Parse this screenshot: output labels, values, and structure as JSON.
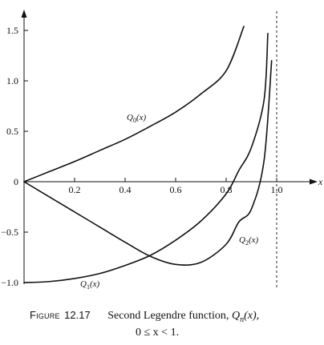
{
  "chart_data": {
    "type": "line",
    "title": "",
    "xlabel": "x",
    "ylabel": "",
    "xlim": [
      0,
      1.08
    ],
    "ylim": [
      -1.0,
      1.65
    ],
    "x_tick_labels": [
      "0.2",
      "0.4",
      "0.6",
      "0.8",
      "1.0"
    ],
    "x_tick_values": [
      0.2,
      0.4,
      0.6,
      0.8,
      1.0
    ],
    "y_tick_labels": [
      "1.5",
      "1.0",
      "0.5",
      "0",
      "−0.5",
      "−1.0"
    ],
    "y_tick_values": [
      1.5,
      1.0,
      0.5,
      0,
      -0.5,
      -1.0
    ],
    "asymptote_x": 1.0,
    "grid": false,
    "legend": "none",
    "series": [
      {
        "name": "Q0(x)",
        "label_main": "Q",
        "label_sub": "0",
        "label_arg": "(x)",
        "x": [
          0,
          0.1,
          0.2,
          0.3,
          0.4,
          0.5,
          0.6,
          0.7,
          0.8,
          0.87
        ],
        "values": [
          0,
          0.1,
          0.2,
          0.31,
          0.42,
          0.55,
          0.69,
          0.87,
          1.1,
          1.54
        ]
      },
      {
        "name": "Q1(x)",
        "label_main": "Q",
        "label_sub": "1",
        "label_arg": "(x)",
        "x": [
          0,
          0.1,
          0.2,
          0.3,
          0.4,
          0.5,
          0.6,
          0.7,
          0.8,
          0.85,
          0.9,
          0.95,
          0.965
        ],
        "values": [
          -1.0,
          -0.99,
          -0.96,
          -0.91,
          -0.83,
          -0.73,
          -0.58,
          -0.39,
          -0.12,
          0.11,
          0.34,
          0.81,
          1.47
        ]
      },
      {
        "name": "Q2(x)",
        "label_main": "Q",
        "label_sub": "2",
        "label_arg": "(x)",
        "x": [
          0,
          0.1,
          0.2,
          0.3,
          0.4,
          0.5,
          0.6,
          0.7,
          0.8,
          0.85,
          0.9,
          0.95,
          0.98
        ],
        "values": [
          0,
          -0.15,
          -0.3,
          -0.45,
          -0.6,
          -0.74,
          -0.82,
          -0.8,
          -0.62,
          -0.4,
          -0.27,
          0.21,
          1.2
        ]
      }
    ]
  },
  "caption": {
    "figure_label": "Figure",
    "figure_number": "12.17",
    "line1_text": "Second Legendre function,",
    "line1_math": "Q",
    "line1_math_sub": "n",
    "line1_math_arg": "(x),",
    "line2_math": "0 ≤ x < 1."
  },
  "colors": {
    "ink": "#111111",
    "background": "#ffffff"
  }
}
